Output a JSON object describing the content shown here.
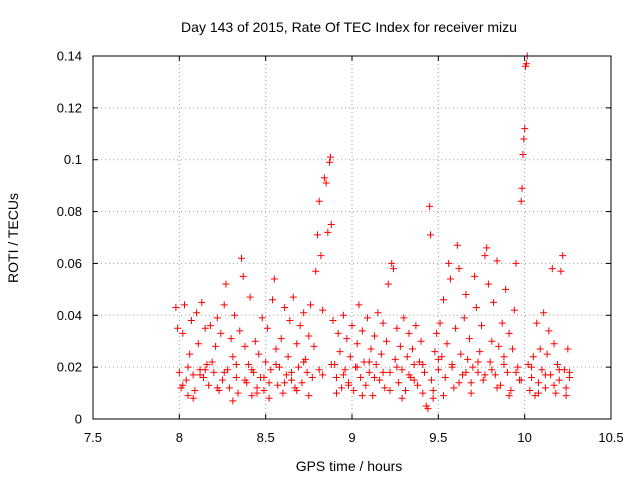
{
  "chart_data": {
    "type": "scatter",
    "title": "Day 143 of 2015, Rate Of TEC Index for receiver mizu",
    "xlabel": "GPS time / hours",
    "ylabel": "ROTI / TECUs",
    "xlim": [
      7.5,
      10.5
    ],
    "ylim": [
      0,
      0.14
    ],
    "x_ticks": [
      "7.5",
      "8",
      "8.5",
      "9",
      "9.5",
      "10",
      "10.5"
    ],
    "y_ticks": [
      "0",
      "0.02",
      "0.04",
      "0.06",
      "0.08",
      "0.1",
      "0.12",
      "0.14"
    ],
    "grid": true,
    "marker": "+",
    "color": "#ff0000",
    "series": [
      {
        "name": "ROTI",
        "points": [
          [
            7.98,
            0.043
          ],
          [
            7.99,
            0.035
          ],
          [
            8.0,
            0.018
          ],
          [
            8.01,
            0.012
          ],
          [
            8.02,
            0.033
          ],
          [
            8.03,
            0.044
          ],
          [
            8.04,
            0.015
          ],
          [
            8.05,
            0.009
          ],
          [
            8.06,
            0.025
          ],
          [
            8.07,
            0.038
          ],
          [
            8.08,
            0.017
          ],
          [
            8.09,
            0.011
          ],
          [
            8.1,
            0.041
          ],
          [
            8.11,
            0.029
          ],
          [
            8.12,
            0.019
          ],
          [
            8.13,
            0.045
          ],
          [
            8.14,
            0.016
          ],
          [
            8.15,
            0.035
          ],
          [
            8.16,
            0.021
          ],
          [
            8.17,
            0.013
          ],
          [
            8.18,
            0.036
          ],
          [
            8.2,
            0.018
          ],
          [
            8.21,
            0.028
          ],
          [
            8.22,
            0.039
          ],
          [
            8.23,
            0.011
          ],
          [
            8.24,
            0.033
          ],
          [
            8.25,
            0.015
          ],
          [
            8.26,
            0.044
          ],
          [
            8.27,
            0.052
          ],
          [
            8.28,
            0.019
          ],
          [
            8.29,
            0.012
          ],
          [
            8.3,
            0.031
          ],
          [
            8.31,
            0.024
          ],
          [
            8.32,
            0.04
          ],
          [
            8.33,
            0.016
          ],
          [
            8.34,
            0.01
          ],
          [
            8.35,
            0.034
          ],
          [
            8.36,
            0.062
          ],
          [
            8.37,
            0.055
          ],
          [
            8.38,
            0.028
          ],
          [
            8.39,
            0.014
          ],
          [
            8.4,
            0.021
          ],
          [
            8.41,
            0.047
          ],
          [
            8.42,
            0.009
          ],
          [
            8.43,
            0.018
          ],
          [
            8.44,
            0.03
          ],
          [
            8.45,
            0.012
          ],
          [
            8.46,
            0.025
          ],
          [
            8.47,
            0.016
          ],
          [
            8.48,
            0.039
          ],
          [
            8.49,
            0.011
          ],
          [
            8.5,
            0.022
          ],
          [
            8.51,
            0.035
          ],
          [
            8.52,
            0.014
          ],
          [
            8.53,
            0.019
          ],
          [
            8.54,
            0.046
          ],
          [
            8.55,
            0.054
          ],
          [
            8.56,
            0.027
          ],
          [
            8.57,
            0.013
          ],
          [
            8.58,
            0.02
          ],
          [
            8.59,
            0.031
          ],
          [
            8.6,
            0.01
          ],
          [
            8.61,
            0.043
          ],
          [
            8.62,
            0.017
          ],
          [
            8.63,
            0.024
          ],
          [
            8.64,
            0.038
          ],
          [
            8.65,
            0.015
          ],
          [
            8.66,
            0.047
          ],
          [
            8.67,
            0.012
          ],
          [
            8.68,
            0.029
          ],
          [
            8.69,
            0.02
          ],
          [
            8.7,
            0.036
          ],
          [
            8.71,
            0.014
          ],
          [
            8.72,
            0.041
          ],
          [
            8.73,
            0.023
          ],
          [
            8.74,
            0.018
          ],
          [
            8.75,
            0.032
          ],
          [
            8.76,
            0.044
          ],
          [
            8.77,
            0.016
          ],
          [
            8.78,
            0.028
          ],
          [
            8.79,
            0.057
          ],
          [
            8.8,
            0.071
          ],
          [
            8.81,
            0.084
          ],
          [
            8.82,
            0.063
          ],
          [
            8.83,
            0.042
          ],
          [
            8.84,
            0.093
          ],
          [
            8.85,
            0.091
          ],
          [
            8.86,
            0.072
          ],
          [
            8.87,
            0.099
          ],
          [
            8.875,
            0.101
          ],
          [
            8.88,
            0.075
          ],
          [
            8.89,
            0.038
          ],
          [
            8.9,
            0.021
          ],
          [
            8.91,
            0.016
          ],
          [
            8.92,
            0.033
          ],
          [
            8.93,
            0.026
          ],
          [
            8.94,
            0.012
          ],
          [
            8.95,
            0.04
          ],
          [
            8.96,
            0.019
          ],
          [
            8.97,
            0.031
          ],
          [
            8.98,
            0.014
          ],
          [
            8.99,
            0.024
          ],
          [
            9.0,
            0.036
          ],
          [
            9.01,
            0.011
          ],
          [
            9.02,
            0.02
          ],
          [
            9.03,
            0.029
          ],
          [
            9.04,
            0.044
          ],
          [
            9.05,
            0.016
          ],
          [
            9.06,
            0.034
          ],
          [
            9.07,
            0.022
          ],
          [
            9.08,
            0.013
          ],
          [
            9.09,
            0.039
          ],
          [
            9.1,
            0.018
          ],
          [
            9.11,
            0.027
          ],
          [
            9.12,
            0.009
          ],
          [
            9.13,
            0.032
          ],
          [
            9.14,
            0.021
          ],
          [
            9.15,
            0.041
          ],
          [
            9.16,
            0.015
          ],
          [
            9.17,
            0.025
          ],
          [
            9.18,
            0.037
          ],
          [
            9.19,
            0.012
          ],
          [
            9.2,
            0.03
          ],
          [
            9.21,
            0.052
          ],
          [
            9.22,
            0.018
          ],
          [
            9.23,
            0.06
          ],
          [
            9.24,
            0.058
          ],
          [
            9.25,
            0.023
          ],
          [
            9.26,
            0.035
          ],
          [
            9.27,
            0.014
          ],
          [
            9.28,
            0.028
          ],
          [
            9.29,
            0.019
          ],
          [
            9.3,
            0.039
          ],
          [
            9.31,
            0.011
          ],
          [
            9.32,
            0.024
          ],
          [
            9.33,
            0.033
          ],
          [
            9.34,
            0.016
          ],
          [
            9.35,
            0.027
          ],
          [
            9.36,
            0.021
          ],
          [
            9.37,
            0.036
          ],
          [
            9.38,
            0.013
          ],
          [
            9.39,
            0.022
          ],
          [
            9.4,
            0.03
          ],
          [
            9.41,
            0.01
          ],
          [
            9.42,
            0.018
          ],
          [
            9.43,
            0.005
          ],
          [
            9.44,
            0.004
          ],
          [
            9.45,
            0.082
          ],
          [
            9.455,
            0.071
          ],
          [
            9.46,
            0.015
          ],
          [
            9.47,
            0.008
          ],
          [
            9.48,
            0.026
          ],
          [
            9.49,
            0.033
          ],
          [
            9.5,
            0.019
          ],
          [
            9.51,
            0.037
          ],
          [
            9.52,
            0.024
          ],
          [
            9.53,
            0.046
          ],
          [
            9.54,
            0.016
          ],
          [
            9.55,
            0.029
          ],
          [
            9.56,
            0.06
          ],
          [
            9.57,
            0.054
          ],
          [
            9.58,
            0.021
          ],
          [
            9.59,
            0.012
          ],
          [
            9.6,
            0.035
          ],
          [
            9.61,
            0.067
          ],
          [
            9.62,
            0.058
          ],
          [
            9.63,
            0.025
          ],
          [
            9.64,
            0.017
          ],
          [
            9.65,
            0.039
          ],
          [
            9.66,
            0.048
          ],
          [
            9.67,
            0.023
          ],
          [
            9.68,
            0.031
          ],
          [
            9.69,
            0.014
          ],
          [
            9.7,
            0.02
          ],
          [
            9.71,
            0.055
          ],
          [
            9.72,
            0.043
          ],
          [
            9.73,
            0.018
          ],
          [
            9.74,
            0.026
          ],
          [
            9.75,
            0.036
          ],
          [
            9.76,
            0.015
          ],
          [
            9.77,
            0.063
          ],
          [
            9.78,
            0.066
          ],
          [
            9.79,
            0.052
          ],
          [
            9.8,
            0.022
          ],
          [
            9.81,
            0.03
          ],
          [
            9.82,
            0.045
          ],
          [
            9.83,
            0.017
          ],
          [
            9.84,
            0.061
          ],
          [
            9.85,
            0.028
          ],
          [
            9.86,
            0.013
          ],
          [
            9.87,
            0.037
          ],
          [
            9.88,
            0.024
          ],
          [
            9.89,
            0.05
          ],
          [
            9.9,
            0.018
          ],
          [
            9.91,
            0.033
          ],
          [
            9.92,
            0.011
          ],
          [
            9.93,
            0.027
          ],
          [
            9.94,
            0.042
          ],
          [
            9.95,
            0.06
          ],
          [
            9.96,
            0.02
          ],
          [
            9.97,
            0.015
          ],
          [
            9.98,
            0.084
          ],
          [
            9.985,
            0.089
          ],
          [
            9.99,
            0.102
          ],
          [
            9.995,
            0.108
          ],
          [
            10.0,
            0.112
          ],
          [
            10.005,
            0.136
          ],
          [
            10.01,
            0.137
          ],
          [
            10.015,
            0.14
          ],
          [
            10.02,
            0.021
          ],
          [
            10.03,
            0.011
          ],
          [
            10.04,
            0.016
          ],
          [
            10.05,
            0.024
          ],
          [
            10.06,
            0.009
          ],
          [
            10.07,
            0.037
          ],
          [
            10.08,
            0.014
          ],
          [
            10.09,
            0.027
          ],
          [
            10.1,
            0.019
          ],
          [
            10.11,
            0.041
          ],
          [
            10.12,
            0.012
          ],
          [
            10.13,
            0.025
          ],
          [
            10.14,
            0.034
          ],
          [
            10.15,
            0.017
          ],
          [
            10.16,
            0.058
          ],
          [
            10.17,
            0.029
          ],
          [
            10.18,
            0.01
          ],
          [
            10.19,
            0.021
          ],
          [
            10.2,
            0.015
          ],
          [
            10.21,
            0.057
          ],
          [
            10.22,
            0.063
          ],
          [
            10.23,
            0.019
          ],
          [
            10.24,
            0.012
          ],
          [
            10.25,
            0.027
          ],
          [
            10.26,
            0.016
          ],
          [
            8.02,
            0.013
          ],
          [
            8.08,
            0.008
          ],
          [
            8.15,
            0.019
          ],
          [
            8.22,
            0.012
          ],
          [
            8.31,
            0.007
          ],
          [
            8.38,
            0.015
          ],
          [
            8.45,
            0.01
          ],
          [
            8.52,
            0.008
          ],
          [
            8.61,
            0.014
          ],
          [
            8.68,
            0.011
          ],
          [
            8.75,
            0.009
          ],
          [
            8.83,
            0.017
          ],
          [
            8.91,
            0.01
          ],
          [
            8.98,
            0.013
          ],
          [
            9.06,
            0.009
          ],
          [
            9.13,
            0.016
          ],
          [
            9.22,
            0.011
          ],
          [
            9.29,
            0.008
          ],
          [
            9.36,
            0.015
          ],
          [
            9.47,
            0.011
          ],
          [
            9.53,
            0.009
          ],
          [
            9.62,
            0.014
          ],
          [
            9.69,
            0.01
          ],
          [
            9.77,
            0.017
          ],
          [
            9.84,
            0.012
          ],
          [
            9.91,
            0.009
          ],
          [
            9.98,
            0.015
          ],
          [
            10.08,
            0.01
          ],
          [
            10.17,
            0.013
          ],
          [
            10.24,
            0.009
          ],
          [
            8.05,
            0.02
          ],
          [
            8.12,
            0.017
          ],
          [
            8.19,
            0.022
          ],
          [
            8.26,
            0.018
          ],
          [
            8.33,
            0.021
          ],
          [
            8.42,
            0.019
          ],
          [
            8.49,
            0.016
          ],
          [
            8.56,
            0.021
          ],
          [
            8.65,
            0.018
          ],
          [
            8.72,
            0.022
          ],
          [
            8.81,
            0.019
          ],
          [
            8.88,
            0.021
          ],
          [
            8.95,
            0.017
          ],
          [
            9.03,
            0.02
          ],
          [
            9.1,
            0.022
          ],
          [
            9.18,
            0.018
          ],
          [
            9.26,
            0.02
          ],
          [
            9.33,
            0.017
          ],
          [
            9.41,
            0.021
          ],
          [
            9.5,
            0.023
          ],
          [
            9.58,
            0.02
          ],
          [
            9.66,
            0.018
          ],
          [
            9.73,
            0.022
          ],
          [
            9.81,
            0.019
          ],
          [
            9.88,
            0.021
          ],
          [
            9.95,
            0.018
          ],
          [
            10.04,
            0.02
          ],
          [
            10.12,
            0.017
          ],
          [
            10.2,
            0.019
          ],
          [
            10.26,
            0.018
          ]
        ]
      }
    ]
  }
}
